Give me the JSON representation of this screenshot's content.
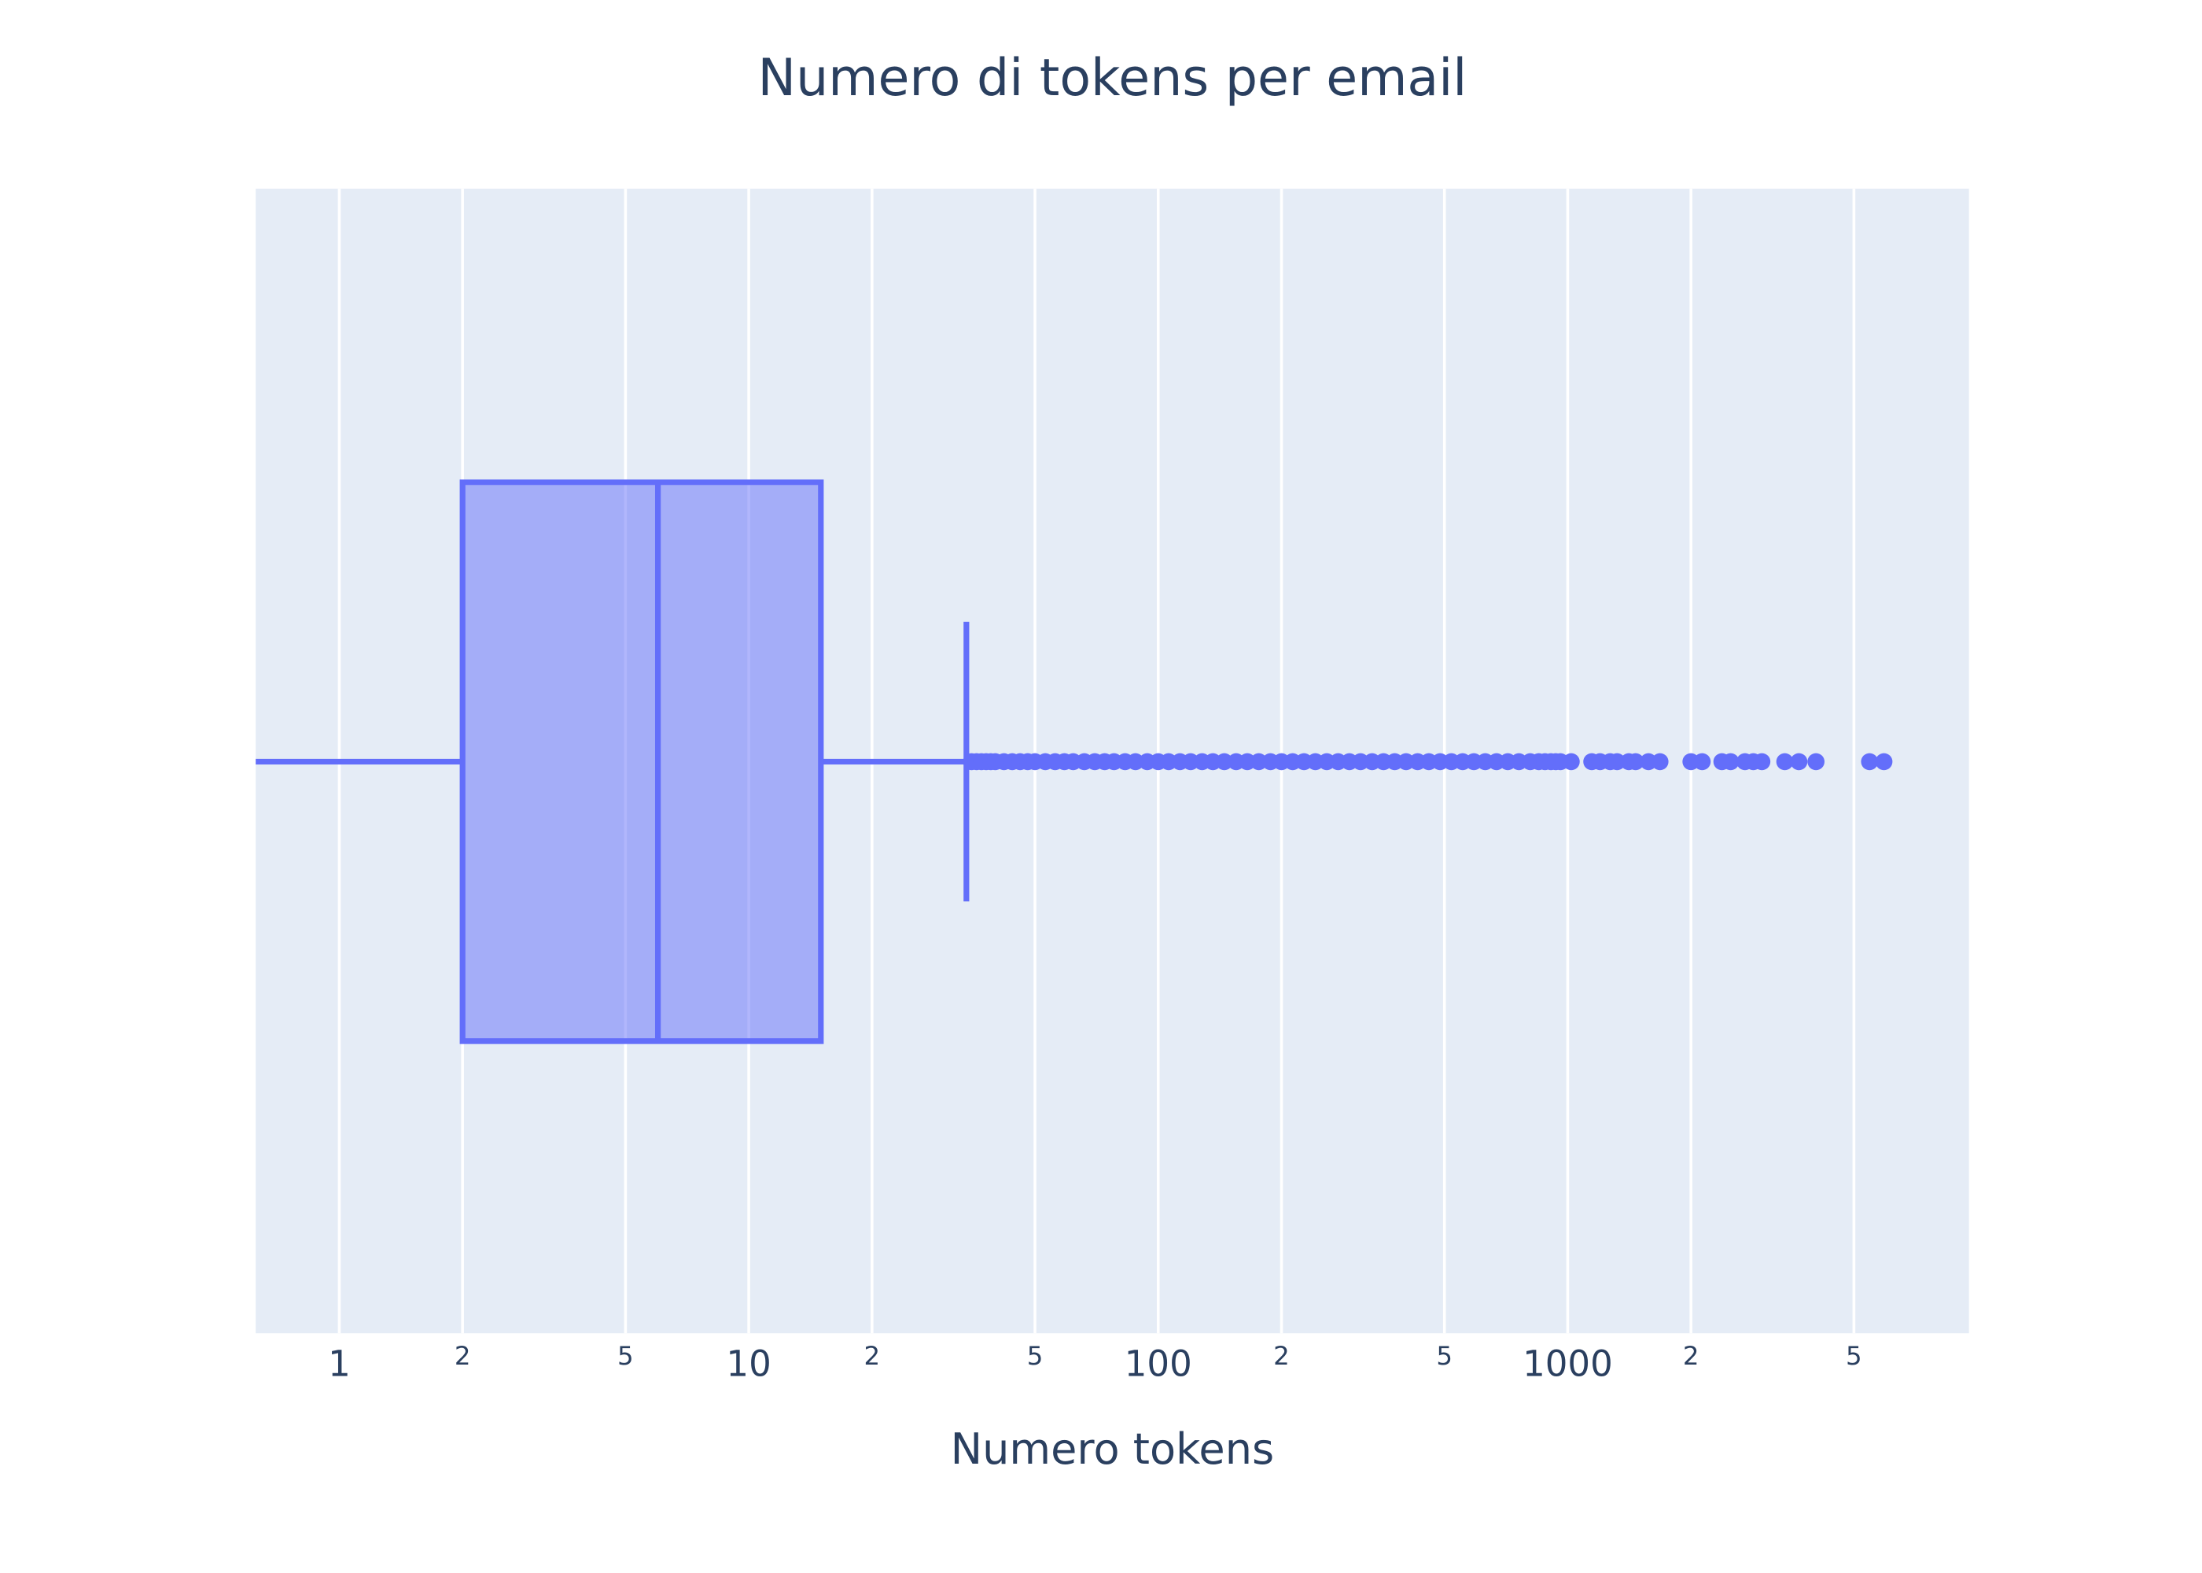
{
  "chart_data": {
    "type": "box",
    "orientation": "horizontal",
    "title": "Numero di tokens per email",
    "x_label": "Numero tokens",
    "log_x": true,
    "grid": true,
    "color": "#636efa",
    "xlim": [
      0.625,
      9550
    ],
    "xticks": [
      1,
      {
        "value": 2,
        "label": "2"
      },
      {
        "value": 5,
        "label": "5"
      },
      10,
      {
        "value": 20,
        "label": "2"
      },
      {
        "value": 50,
        "label": "5"
      },
      100,
      {
        "value": 200,
        "label": "2"
      },
      {
        "value": 500,
        "label": "5"
      },
      1000,
      {
        "value": 2000,
        "label": "2"
      },
      {
        "value": 5000,
        "label": "5"
      }
    ],
    "lowerfence": 0,
    "q1": 2,
    "median": 6,
    "q3": 15,
    "upperfence": 34,
    "outliers": [
      35,
      36,
      37,
      38,
      39,
      40,
      42,
      44,
      46,
      48,
      50,
      53,
      56,
      59,
      62,
      66,
      70,
      74,
      78,
      83,
      88,
      94,
      100,
      106,
      113,
      120,
      128,
      136,
      145,
      155,
      165,
      176,
      188,
      200,
      213,
      227,
      242,
      258,
      275,
      293,
      312,
      333,
      355,
      378,
      403,
      430,
      458,
      488,
      520,
      554,
      590,
      629,
      670,
      714,
      760,
      810,
      850,
      880,
      910,
      935,
      960,
      1020,
      1145,
      1200,
      1270,
      1320,
      1410,
      1465,
      1575,
      1680,
      2000,
      2130,
      2380,
      2500,
      2710,
      2840,
      2980,
      3390,
      3670,
      4040,
      5460,
      5920
    ]
  }
}
